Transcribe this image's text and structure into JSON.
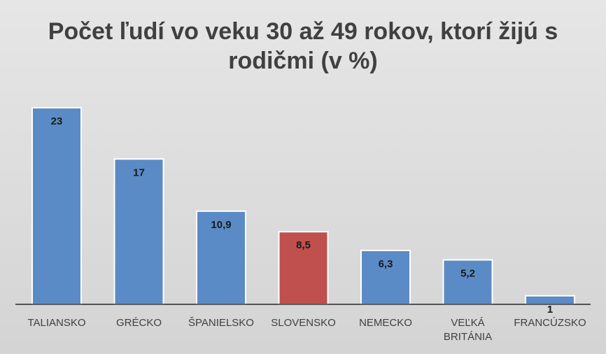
{
  "chart_data": {
    "type": "bar",
    "title": "Počet ľudí vo veku 30 až 49 rokov, ktorí žijú s rodičmi (v %)",
    "title_lines": [
      "Počet ľudí vo veku 30 až 49 rokov, ktorí žijú s",
      "rodičmi (v %)"
    ],
    "categories": [
      "TALIANSKO",
      "GRÉCKO",
      "ŠPANIELSKO",
      "SLOVENSKO",
      "NEMECKO",
      "VEĽKÁ BRITÁNIA",
      "FRANCÚZSKO"
    ],
    "category_lines": [
      [
        "TALIANSKO"
      ],
      [
        "GRÉCKO"
      ],
      [
        "ŠPANIELSKO"
      ],
      [
        "SLOVENSKO"
      ],
      [
        "NEMECKO"
      ],
      [
        "VEĽKÁ",
        "BRITÁNIA"
      ],
      [
        "FRANCÚZSKO"
      ]
    ],
    "values": [
      23,
      17,
      10.9,
      8.5,
      6.3,
      5.2,
      1
    ],
    "value_labels": [
      "23",
      "17",
      "10,9",
      "8,5",
      "6,3",
      "5,2",
      "1"
    ],
    "bar_colors": [
      "#5b8bc6",
      "#5b8bc6",
      "#5b8bc6",
      "#c0504d",
      "#5b8bc6",
      "#5b8bc6",
      "#5b8bc6"
    ],
    "ylim": [
      0,
      23
    ],
    "grid": false,
    "legend": "none",
    "xlabel": "",
    "ylabel": ""
  }
}
